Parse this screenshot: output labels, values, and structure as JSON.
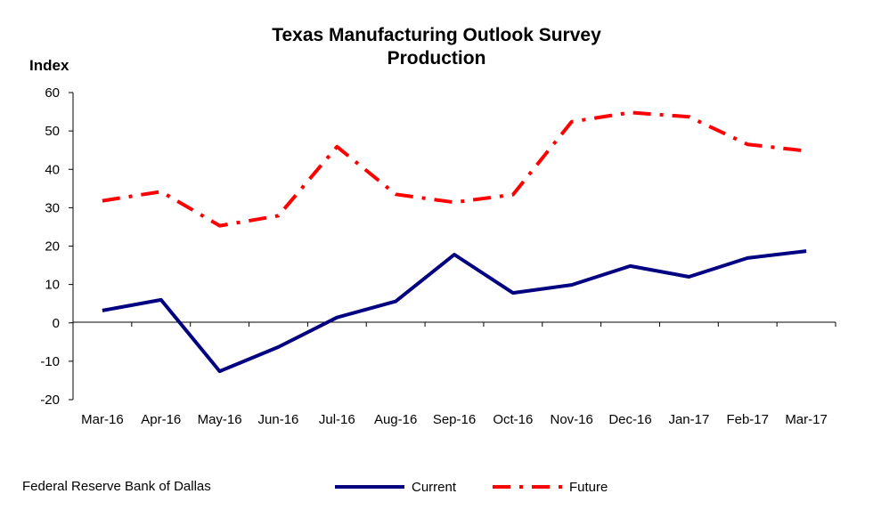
{
  "chart_data": {
    "type": "line",
    "title": "Texas Manufacturing Outlook Survey",
    "subtitle": "Production",
    "ylabel": "Index",
    "xlabel": "",
    "ylim": [
      -20,
      60
    ],
    "yticks": [
      -20,
      -10,
      0,
      10,
      20,
      30,
      40,
      50,
      60
    ],
    "categories": [
      "Mar-16",
      "Apr-16",
      "May-16",
      "Jun-16",
      "Jul-16",
      "Aug-16",
      "Sep-16",
      "Oct-16",
      "Nov-16",
      "Dec-16",
      "Jan-17",
      "Feb-17",
      "Mar-17"
    ],
    "series": [
      {
        "name": "Current",
        "color": "#000080",
        "style": "solid",
        "values": [
          3.2,
          6.0,
          -12.6,
          -6.3,
          1.4,
          5.6,
          17.8,
          7.8,
          9.9,
          14.8,
          12.0,
          16.9,
          18.7
        ]
      },
      {
        "name": "Future",
        "color": "#ff0000",
        "style": "dash-dot",
        "values": [
          31.8,
          34.2,
          25.3,
          27.9,
          45.9,
          33.5,
          31.4,
          33.4,
          52.4,
          54.8,
          53.7,
          46.5,
          44.8
        ]
      }
    ],
    "grid": false,
    "legend_position": "bottom-center",
    "source": "Federal Reserve Bank of Dallas"
  }
}
